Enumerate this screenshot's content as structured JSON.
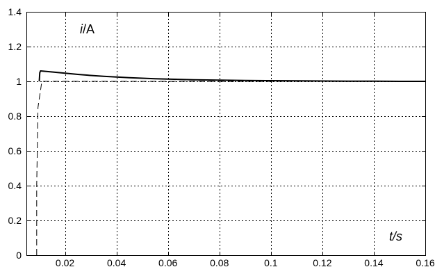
{
  "chart_data": {
    "type": "line",
    "title": "",
    "xlabel": "",
    "ylabel": "",
    "xlim": [
      0.005,
      0.16
    ],
    "ylim": [
      0,
      1.4
    ],
    "x_ticks": [
      0.02,
      0.04,
      0.06,
      0.08,
      0.1,
      0.12,
      0.14,
      0.16
    ],
    "x_tick_labels": [
      "0.02",
      "0.04",
      "0.06",
      "0.08",
      "0.1",
      "0.12",
      "0.14",
      "0.16"
    ],
    "y_ticks": [
      0,
      0.2,
      0.4,
      0.6,
      0.8,
      1,
      1.2,
      1.4
    ],
    "y_tick_labels": [
      "0",
      "0.2",
      "0.4",
      "0.6",
      "0.8",
      "1",
      "1.2",
      "1.4"
    ],
    "grid": true,
    "annotations": {
      "y_quantity": "i",
      "y_unit": "/A",
      "x_quantity": "t",
      "x_unit": "/s"
    },
    "series": [
      {
        "style": "solid",
        "color": "#000000",
        "x": [
          0.01,
          0.0102,
          0.0105,
          0.012,
          0.015,
          0.02,
          0.025,
          0.03,
          0.035,
          0.04,
          0.045,
          0.05,
          0.055,
          0.06,
          0.07,
          0.08,
          0.09,
          0.1,
          0.11,
          0.12,
          0.13,
          0.14,
          0.15,
          0.16
        ],
        "y": [
          1.0,
          1.05,
          1.06,
          1.058,
          1.054,
          1.047,
          1.04,
          1.034,
          1.029,
          1.025,
          1.021,
          1.018,
          1.015,
          1.013,
          1.009,
          1.007,
          1.005,
          1.004,
          1.003,
          1.002,
          1.001,
          1.001,
          1.0,
          1.0
        ]
      },
      {
        "style": "dashed",
        "color": "#000000",
        "x": [
          0.009,
          0.009,
          0.0095,
          0.011,
          0.16
        ],
        "y": [
          0.0,
          0.4,
          0.85,
          1.0,
          1.0
        ]
      }
    ]
  }
}
